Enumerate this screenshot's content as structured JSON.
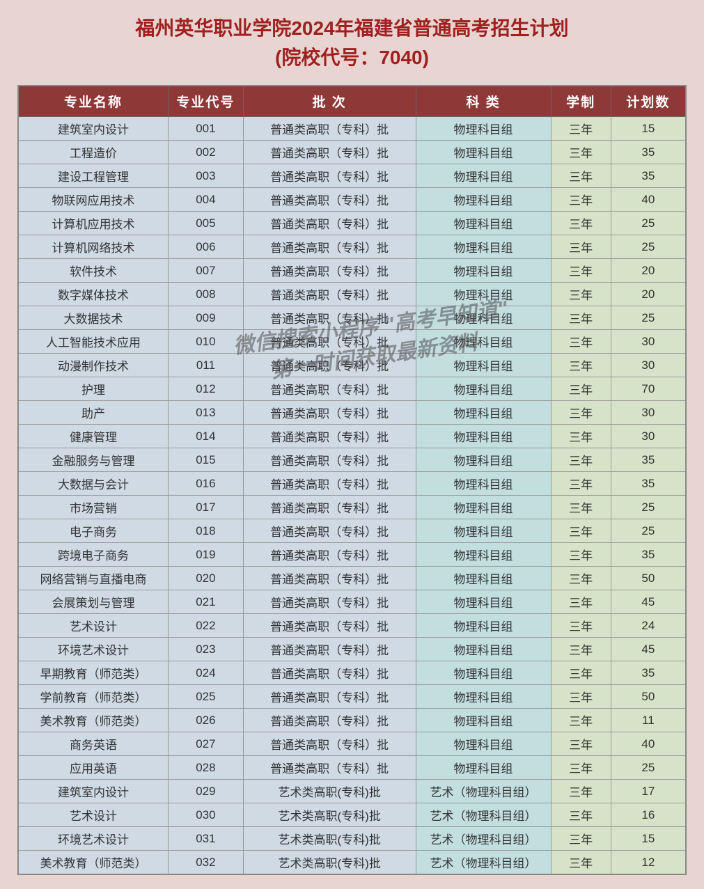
{
  "title_line1": "福州英华职业学院2024年福建省普通高考招生计划",
  "title_line2": "(院校代号：7040)",
  "watermark_line1": "微信搜索小程序 \"高考早知道\"",
  "watermark_line2": "第一时间获取最新资料",
  "columns": [
    "专业名称",
    "专业代号",
    "批  次",
    "科  类",
    "学制",
    "计划数"
  ],
  "header_bg": "#8e3838",
  "header_color": "#ffffff",
  "title_color": "#a02020",
  "page_bg": "#e8d5d2",
  "col_bg_blue": "#cfdae5",
  "col_bg_teal": "#c3dedf",
  "col_bg_green": "#d7e3c8",
  "border_color": "#999999",
  "title_fontsize": 28,
  "header_fontsize": 19,
  "cell_fontsize": 17,
  "rows": [
    {
      "name": "建筑室内设计",
      "code": "001",
      "batch": "普通类高职（专科）批",
      "cat": "物理科目组",
      "dur": "三年",
      "plan": "15"
    },
    {
      "name": "工程造价",
      "code": "002",
      "batch": "普通类高职（专科）批",
      "cat": "物理科目组",
      "dur": "三年",
      "plan": "35"
    },
    {
      "name": "建设工程管理",
      "code": "003",
      "batch": "普通类高职（专科）批",
      "cat": "物理科目组",
      "dur": "三年",
      "plan": "35"
    },
    {
      "name": "物联网应用技术",
      "code": "004",
      "batch": "普通类高职（专科）批",
      "cat": "物理科目组",
      "dur": "三年",
      "plan": "40"
    },
    {
      "name": "计算机应用技术",
      "code": "005",
      "batch": "普通类高职（专科）批",
      "cat": "物理科目组",
      "dur": "三年",
      "plan": "25"
    },
    {
      "name": "计算机网络技术",
      "code": "006",
      "batch": "普通类高职（专科）批",
      "cat": "物理科目组",
      "dur": "三年",
      "plan": "25"
    },
    {
      "name": "软件技术",
      "code": "007",
      "batch": "普通类高职（专科）批",
      "cat": "物理科目组",
      "dur": "三年",
      "plan": "20"
    },
    {
      "name": "数字媒体技术",
      "code": "008",
      "batch": "普通类高职（专科）批",
      "cat": "物理科目组",
      "dur": "三年",
      "plan": "20"
    },
    {
      "name": "大数据技术",
      "code": "009",
      "batch": "普通类高职（专科）批",
      "cat": "物理科目组",
      "dur": "三年",
      "plan": "25"
    },
    {
      "name": "人工智能技术应用",
      "code": "010",
      "batch": "普通类高职（专科）批",
      "cat": "物理科目组",
      "dur": "三年",
      "plan": "30"
    },
    {
      "name": "动漫制作技术",
      "code": "011",
      "batch": "普通类高职（专科）批",
      "cat": "物理科目组",
      "dur": "三年",
      "plan": "30"
    },
    {
      "name": "护理",
      "code": "012",
      "batch": "普通类高职（专科）批",
      "cat": "物理科目组",
      "dur": "三年",
      "plan": "70"
    },
    {
      "name": "助产",
      "code": "013",
      "batch": "普通类高职（专科）批",
      "cat": "物理科目组",
      "dur": "三年",
      "plan": "30"
    },
    {
      "name": "健康管理",
      "code": "014",
      "batch": "普通类高职（专科）批",
      "cat": "物理科目组",
      "dur": "三年",
      "plan": "30"
    },
    {
      "name": "金融服务与管理",
      "code": "015",
      "batch": "普通类高职（专科）批",
      "cat": "物理科目组",
      "dur": "三年",
      "plan": "35"
    },
    {
      "name": "大数据与会计",
      "code": "016",
      "batch": "普通类高职（专科）批",
      "cat": "物理科目组",
      "dur": "三年",
      "plan": "35"
    },
    {
      "name": "市场营销",
      "code": "017",
      "batch": "普通类高职（专科）批",
      "cat": "物理科目组",
      "dur": "三年",
      "plan": "25"
    },
    {
      "name": "电子商务",
      "code": "018",
      "batch": "普通类高职（专科）批",
      "cat": "物理科目组",
      "dur": "三年",
      "plan": "25"
    },
    {
      "name": "跨境电子商务",
      "code": "019",
      "batch": "普通类高职（专科）批",
      "cat": "物理科目组",
      "dur": "三年",
      "plan": "35"
    },
    {
      "name": "网络营销与直播电商",
      "code": "020",
      "batch": "普通类高职（专科）批",
      "cat": "物理科目组",
      "dur": "三年",
      "plan": "50"
    },
    {
      "name": "会展策划与管理",
      "code": "021",
      "batch": "普通类高职（专科）批",
      "cat": "物理科目组",
      "dur": "三年",
      "plan": "45"
    },
    {
      "name": "艺术设计",
      "code": "022",
      "batch": "普通类高职（专科）批",
      "cat": "物理科目组",
      "dur": "三年",
      "plan": "24"
    },
    {
      "name": "环境艺术设计",
      "code": "023",
      "batch": "普通类高职（专科）批",
      "cat": "物理科目组",
      "dur": "三年",
      "plan": "45"
    },
    {
      "name": "早期教育（师范类）",
      "code": "024",
      "batch": "普通类高职（专科）批",
      "cat": "物理科目组",
      "dur": "三年",
      "plan": "35"
    },
    {
      "name": "学前教育（师范类）",
      "code": "025",
      "batch": "普通类高职（专科）批",
      "cat": "物理科目组",
      "dur": "三年",
      "plan": "50"
    },
    {
      "name": "美术教育（师范类）",
      "code": "026",
      "batch": "普通类高职（专科）批",
      "cat": "物理科目组",
      "dur": "三年",
      "plan": "11"
    },
    {
      "name": "商务英语",
      "code": "027",
      "batch": "普通类高职（专科）批",
      "cat": "物理科目组",
      "dur": "三年",
      "plan": "40"
    },
    {
      "name": "应用英语",
      "code": "028",
      "batch": "普通类高职（专科）批",
      "cat": "物理科目组",
      "dur": "三年",
      "plan": "25"
    },
    {
      "name": "建筑室内设计",
      "code": "029",
      "batch": "艺术类高职(专科)批",
      "cat": "艺术（物理科目组）",
      "dur": "三年",
      "plan": "17"
    },
    {
      "name": "艺术设计",
      "code": "030",
      "batch": "艺术类高职(专科)批",
      "cat": "艺术（物理科目组）",
      "dur": "三年",
      "plan": "16"
    },
    {
      "name": "环境艺术设计",
      "code": "031",
      "batch": "艺术类高职(专科)批",
      "cat": "艺术（物理科目组）",
      "dur": "三年",
      "plan": "15"
    },
    {
      "name": "美术教育（师范类）",
      "code": "032",
      "batch": "艺术类高职(专科)批",
      "cat": "艺术（物理科目组）",
      "dur": "三年",
      "plan": "12"
    }
  ]
}
